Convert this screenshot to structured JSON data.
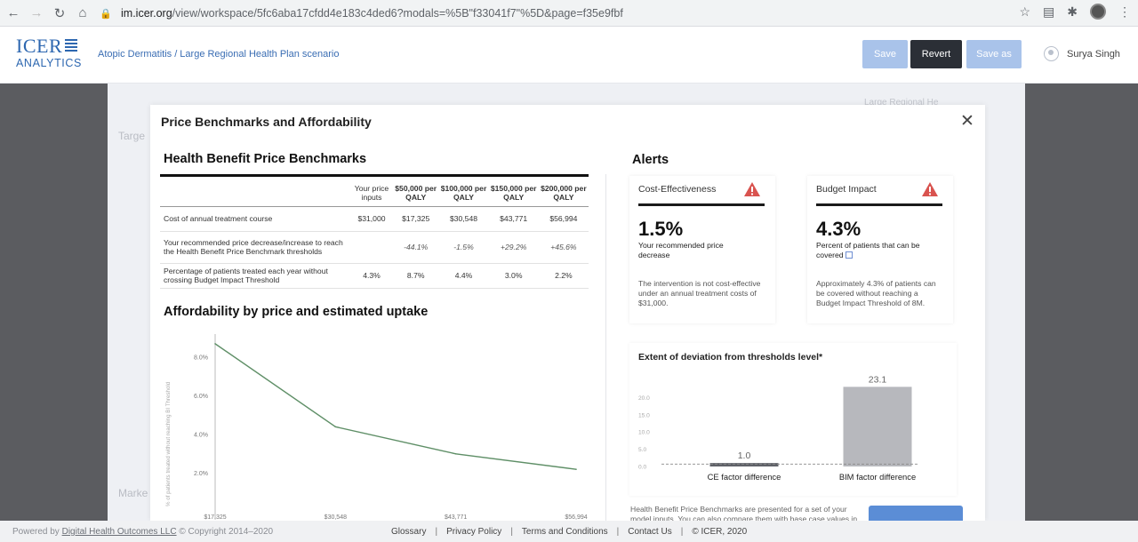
{
  "browser": {
    "url_host": "im.icer.org",
    "url_rest": "/view/workspace/5fc6aba17cfdd4e183c4ded6?modals=%5B\"f33041f7\"%5D&page=f35e9fbf"
  },
  "header": {
    "logo_top": "ICER",
    "logo_bottom": "ANALYTICS",
    "breadcrumb": "Atopic Dermatitis / Large Regional Health Plan scenario",
    "save_label": "Save",
    "revert_label": "Revert",
    "saveas_label": "Save as",
    "user_name": "Surya Singh"
  },
  "background": {
    "left_label_1": "Targe",
    "left_label_2": "Marke",
    "right_label": "Large Regional He"
  },
  "modal": {
    "title": "Price Benchmarks and Affordability",
    "bench_heading": "Health Benefit Price Benchmarks",
    "columns": [
      "Your price inputs",
      "$50,000 per QALY",
      "$100,000 per QALY",
      "$150,000 per QALY",
      "$200,000 per QALY"
    ],
    "rows": [
      {
        "label": "Cost of annual treatment course",
        "values": [
          "$31,000",
          "$17,325",
          "$30,548",
          "$43,771",
          "$56,994"
        ]
      },
      {
        "label": "Your recommended price decrease/increase to reach the Health Benefit Price Benchmark thresholds",
        "values": [
          "",
          "-44.1%",
          "-1.5%",
          "+29.2%",
          "+45.6%"
        ]
      },
      {
        "label": "Percentage of patients treated each year without crossing Budget Impact Threshold",
        "values": [
          "4.3%",
          "8.7%",
          "4.4%",
          "3.0%",
          "2.2%"
        ]
      }
    ],
    "afford_heading": "Affordability by price and estimated uptake",
    "alerts_heading": "Alerts",
    "ce_card": {
      "title": "Cost-Effectiveness",
      "big": "1.5%",
      "sub": "Your recommended price decrease",
      "desc": "The intervention is not cost-effective under an annual treatment costs of $31,000."
    },
    "bi_card": {
      "title": "Budget Impact",
      "big": "4.3%",
      "sub": "Percent of patients that can be covered",
      "desc": "Approximately 4.3% of patients can be covered without reaching a Budget Impact Threshold of 8M."
    },
    "deviation_title": "Extent of deviation from thresholds level*",
    "footnote": "Health Benefit Price Benchmarks are presented for a set of your model inputs. You can also compare them with base case values in"
  },
  "chart_data": [
    {
      "type": "line",
      "title": "Affordability by price and estimated uptake",
      "ylabel": "% of patients treated without reaching BI Threshold",
      "xlabel": "",
      "x": [
        "$17,325",
        "$30,548",
        "$43,771",
        "$56,994"
      ],
      "x_values": [
        17325,
        30548,
        43771,
        56994
      ],
      "y_values": [
        8.7,
        4.4,
        3.0,
        2.2
      ],
      "yticks": [
        "8.0%",
        "6.0%",
        "4.0%",
        "2.0%"
      ],
      "ytick_values": [
        8,
        6,
        4,
        2
      ],
      "ylim": [
        0,
        9.2
      ],
      "line_color": "#5f8f67",
      "grid": false
    },
    {
      "type": "bar",
      "title": "Extent of deviation from thresholds level*",
      "categories": [
        "CE factor difference",
        "BIM factor difference"
      ],
      "values": [
        1.0,
        23.1
      ],
      "value_labels": [
        "1.0",
        "23.1"
      ],
      "yticks": [
        "20.0",
        "15.0",
        "10.0",
        "5.0",
        "0.0"
      ],
      "ytick_values": [
        20,
        15,
        10,
        5,
        0
      ],
      "ylim": [
        0,
        25
      ],
      "bar_color": "#b7b8bd",
      "small_bar_color": "#5f6268",
      "reference_line": 1.0
    }
  ],
  "footer": {
    "powered": "Powered by",
    "company": "Digital Health Outcomes LLC",
    "copyright": "© Copyright 2014–2020",
    "links": [
      "Glossary",
      "Privacy Policy",
      "Terms and Conditions",
      "Contact Us",
      "© ICER, 2020"
    ]
  }
}
